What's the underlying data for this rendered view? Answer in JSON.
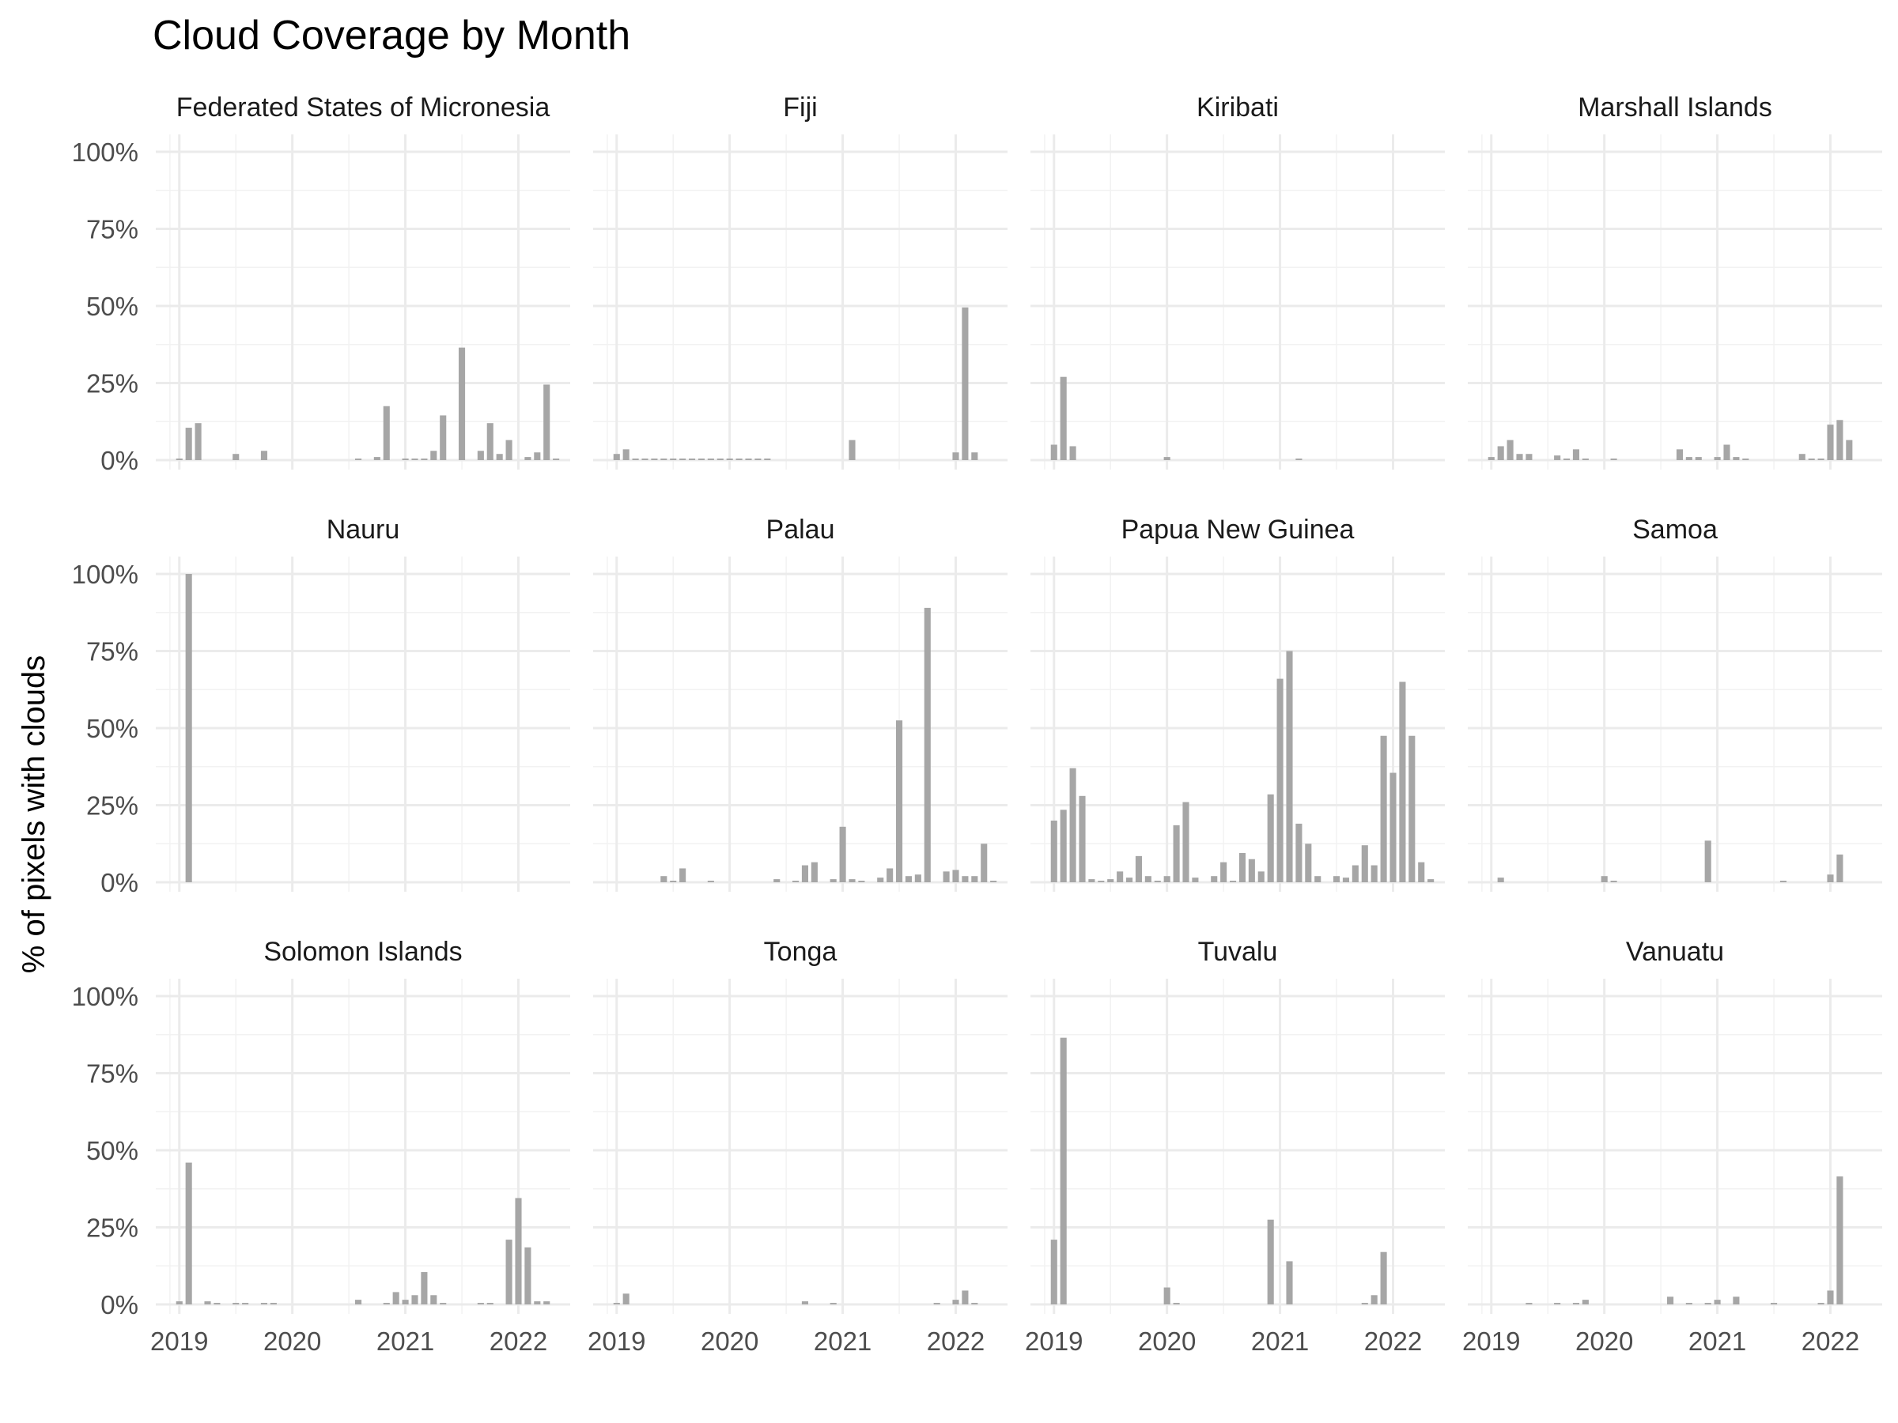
{
  "chart_data": {
    "type": "bar",
    "title": "Cloud Coverage by Month",
    "ylabel": "% of pixels with clouds",
    "xlabel": "",
    "ylim": [
      0,
      100
    ],
    "ytick_labels": [
      "0%",
      "25%",
      "50%",
      "75%",
      "100%"
    ],
    "yticks": [
      0,
      25,
      50,
      75,
      100
    ],
    "xtick_labels": [
      "2019",
      "2020",
      "2021",
      "2022"
    ],
    "xticks": [
      "2019-01",
      "2020-01",
      "2021-01",
      "2022-01"
    ],
    "x_range": [
      "2018-11",
      "2022-06"
    ],
    "grid": true,
    "bar_color": "#a6a6a6",
    "panels": [
      {
        "name": "Federated States of Micronesia",
        "points": [
          [
            "2019-01",
            0.5
          ],
          [
            "2019-02",
            10.5
          ],
          [
            "2019-03",
            12
          ],
          [
            "2019-07",
            2
          ],
          [
            "2019-10",
            3
          ],
          [
            "2020-08",
            0.5
          ],
          [
            "2020-10",
            1
          ],
          [
            "2020-11",
            17.5
          ],
          [
            "2021-01",
            0.5
          ],
          [
            "2021-02",
            0.5
          ],
          [
            "2021-03",
            0.5
          ],
          [
            "2021-04",
            3
          ],
          [
            "2021-05",
            14.5
          ],
          [
            "2021-07",
            36.5
          ],
          [
            "2021-09",
            3
          ],
          [
            "2021-10",
            12
          ],
          [
            "2021-11",
            2
          ],
          [
            "2021-12",
            6.5
          ],
          [
            "2022-02",
            1
          ],
          [
            "2022-03",
            2.5
          ],
          [
            "2022-04",
            24.5
          ],
          [
            "2022-05",
            0.5
          ]
        ]
      },
      {
        "name": "Fiji",
        "points": [
          [
            "2019-01",
            2
          ],
          [
            "2019-02",
            3.5
          ],
          [
            "2019-03",
            0.5
          ],
          [
            "2019-04",
            0.5
          ],
          [
            "2019-05",
            0.5
          ],
          [
            "2019-06",
            0.5
          ],
          [
            "2019-07",
            0.5
          ],
          [
            "2019-08",
            0.5
          ],
          [
            "2019-09",
            0.5
          ],
          [
            "2019-10",
            0.5
          ],
          [
            "2019-11",
            0.5
          ],
          [
            "2019-12",
            0.5
          ],
          [
            "2020-01",
            0.5
          ],
          [
            "2020-02",
            0.5
          ],
          [
            "2020-03",
            0.5
          ],
          [
            "2020-04",
            0.5
          ],
          [
            "2020-05",
            0.5
          ],
          [
            "2021-02",
            6.5
          ],
          [
            "2022-01",
            2.5
          ],
          [
            "2022-02",
            49.5
          ],
          [
            "2022-03",
            2.5
          ]
        ]
      },
      {
        "name": "Kiribati",
        "points": [
          [
            "2019-01",
            5
          ],
          [
            "2019-02",
            27
          ],
          [
            "2019-03",
            4.5
          ],
          [
            "2020-01",
            1
          ],
          [
            "2021-03",
            0.5
          ]
        ]
      },
      {
        "name": "Marshall Islands",
        "points": [
          [
            "2019-01",
            1
          ],
          [
            "2019-02",
            4.5
          ],
          [
            "2019-03",
            6.5
          ],
          [
            "2019-04",
            2
          ],
          [
            "2019-05",
            2
          ],
          [
            "2019-08",
            1.5
          ],
          [
            "2019-09",
            0.5
          ],
          [
            "2019-10",
            3.5
          ],
          [
            "2019-11",
            0.5
          ],
          [
            "2020-02",
            0.5
          ],
          [
            "2020-09",
            3.5
          ],
          [
            "2020-10",
            1
          ],
          [
            "2020-11",
            1
          ],
          [
            "2021-01",
            1
          ],
          [
            "2021-02",
            5
          ],
          [
            "2021-03",
            1
          ],
          [
            "2021-04",
            0.5
          ],
          [
            "2021-10",
            2
          ],
          [
            "2021-11",
            0.5
          ],
          [
            "2021-12",
            0.5
          ],
          [
            "2022-01",
            11.5
          ],
          [
            "2022-02",
            13
          ],
          [
            "2022-03",
            6.5
          ]
        ]
      },
      {
        "name": "Nauru",
        "points": [
          [
            "2019-02",
            100
          ]
        ]
      },
      {
        "name": "Palau",
        "points": [
          [
            "2019-06",
            2
          ],
          [
            "2019-07",
            0.5
          ],
          [
            "2019-08",
            4.5
          ],
          [
            "2019-11",
            0.5
          ],
          [
            "2020-06",
            1
          ],
          [
            "2020-08",
            0.5
          ],
          [
            "2020-09",
            5.5
          ],
          [
            "2020-10",
            6.5
          ],
          [
            "2020-12",
            1
          ],
          [
            "2021-01",
            18
          ],
          [
            "2021-02",
            1
          ],
          [
            "2021-03",
            0.5
          ],
          [
            "2021-05",
            1.5
          ],
          [
            "2021-06",
            4.5
          ],
          [
            "2021-07",
            52.5
          ],
          [
            "2021-08",
            2
          ],
          [
            "2021-09",
            2.5
          ],
          [
            "2021-10",
            89
          ],
          [
            "2021-12",
            3.5
          ],
          [
            "2022-01",
            4
          ],
          [
            "2022-02",
            2
          ],
          [
            "2022-03",
            2
          ],
          [
            "2022-04",
            12.5
          ],
          [
            "2022-05",
            0.5
          ]
        ]
      },
      {
        "name": "Papua New Guinea",
        "points": [
          [
            "2019-01",
            20
          ],
          [
            "2019-02",
            23.5
          ],
          [
            "2019-03",
            37
          ],
          [
            "2019-04",
            28
          ],
          [
            "2019-05",
            1
          ],
          [
            "2019-06",
            0.5
          ],
          [
            "2019-07",
            1
          ],
          [
            "2019-08",
            3.5
          ],
          [
            "2019-09",
            1.5
          ],
          [
            "2019-10",
            8.5
          ],
          [
            "2019-11",
            2
          ],
          [
            "2019-12",
            0.5
          ],
          [
            "2020-01",
            2
          ],
          [
            "2020-02",
            18.5
          ],
          [
            "2020-03",
            26
          ],
          [
            "2020-04",
            1.5
          ],
          [
            "2020-06",
            2
          ],
          [
            "2020-07",
            6.5
          ],
          [
            "2020-08",
            0.5
          ],
          [
            "2020-09",
            9.5
          ],
          [
            "2020-10",
            7.5
          ],
          [
            "2020-11",
            3.5
          ],
          [
            "2020-12",
            28.5
          ],
          [
            "2021-01",
            66
          ],
          [
            "2021-02",
            75
          ],
          [
            "2021-03",
            19
          ],
          [
            "2021-04",
            12.5
          ],
          [
            "2021-05",
            2
          ],
          [
            "2021-07",
            2
          ],
          [
            "2021-08",
            1.5
          ],
          [
            "2021-09",
            5.5
          ],
          [
            "2021-10",
            12
          ],
          [
            "2021-11",
            5.5
          ],
          [
            "2021-12",
            47.5
          ],
          [
            "2022-01",
            35.5
          ],
          [
            "2022-02",
            65
          ],
          [
            "2022-03",
            47.5
          ],
          [
            "2022-04",
            6.5
          ],
          [
            "2022-05",
            1
          ]
        ]
      },
      {
        "name": "Samoa",
        "points": [
          [
            "2019-02",
            1.5
          ],
          [
            "2020-01",
            2
          ],
          [
            "2020-02",
            0.5
          ],
          [
            "2020-12",
            13.5
          ],
          [
            "2021-08",
            0.5
          ],
          [
            "2022-01",
            2.5
          ],
          [
            "2022-02",
            9
          ]
        ]
      },
      {
        "name": "Solomon Islands",
        "points": [
          [
            "2019-01",
            1
          ],
          [
            "2019-02",
            46
          ],
          [
            "2019-04",
            1
          ],
          [
            "2019-05",
            0.5
          ],
          [
            "2019-07",
            0.5
          ],
          [
            "2019-08",
            0.5
          ],
          [
            "2019-10",
            0.5
          ],
          [
            "2019-11",
            0.5
          ],
          [
            "2020-08",
            1.5
          ],
          [
            "2020-11",
            0.5
          ],
          [
            "2020-12",
            4
          ],
          [
            "2021-01",
            1.5
          ],
          [
            "2021-02",
            3
          ],
          [
            "2021-03",
            10.5
          ],
          [
            "2021-04",
            3
          ],
          [
            "2021-05",
            0.5
          ],
          [
            "2021-09",
            0.5
          ],
          [
            "2021-10",
            0.5
          ],
          [
            "2021-12",
            21
          ],
          [
            "2022-01",
            34.5
          ],
          [
            "2022-02",
            18.5
          ],
          [
            "2022-03",
            1
          ],
          [
            "2022-04",
            1
          ]
        ]
      },
      {
        "name": "Tonga",
        "points": [
          [
            "2019-01",
            0.5
          ],
          [
            "2019-02",
            3.5
          ],
          [
            "2020-09",
            1
          ],
          [
            "2020-12",
            0.5
          ],
          [
            "2021-11",
            0.5
          ],
          [
            "2022-01",
            1.5
          ],
          [
            "2022-02",
            4.5
          ],
          [
            "2022-03",
            0.5
          ]
        ]
      },
      {
        "name": "Tuvalu",
        "points": [
          [
            "2019-01",
            21
          ],
          [
            "2019-02",
            86.5
          ],
          [
            "2020-01",
            5.5
          ],
          [
            "2020-02",
            0.5
          ],
          [
            "2020-12",
            27.5
          ],
          [
            "2021-02",
            14
          ],
          [
            "2021-10",
            0.5
          ],
          [
            "2021-11",
            3
          ],
          [
            "2021-12",
            17
          ]
        ]
      },
      {
        "name": "Vanuatu",
        "points": [
          [
            "2019-05",
            0.5
          ],
          [
            "2019-08",
            0.5
          ],
          [
            "2019-10",
            0.5
          ],
          [
            "2019-11",
            1.5
          ],
          [
            "2020-08",
            2.5
          ],
          [
            "2020-10",
            0.5
          ],
          [
            "2020-12",
            0.5
          ],
          [
            "2021-01",
            1.5
          ],
          [
            "2021-03",
            2.5
          ],
          [
            "2021-07",
            0.5
          ],
          [
            "2021-12",
            0.5
          ],
          [
            "2022-01",
            4.5
          ],
          [
            "2022-02",
            41.5
          ]
        ]
      }
    ]
  }
}
